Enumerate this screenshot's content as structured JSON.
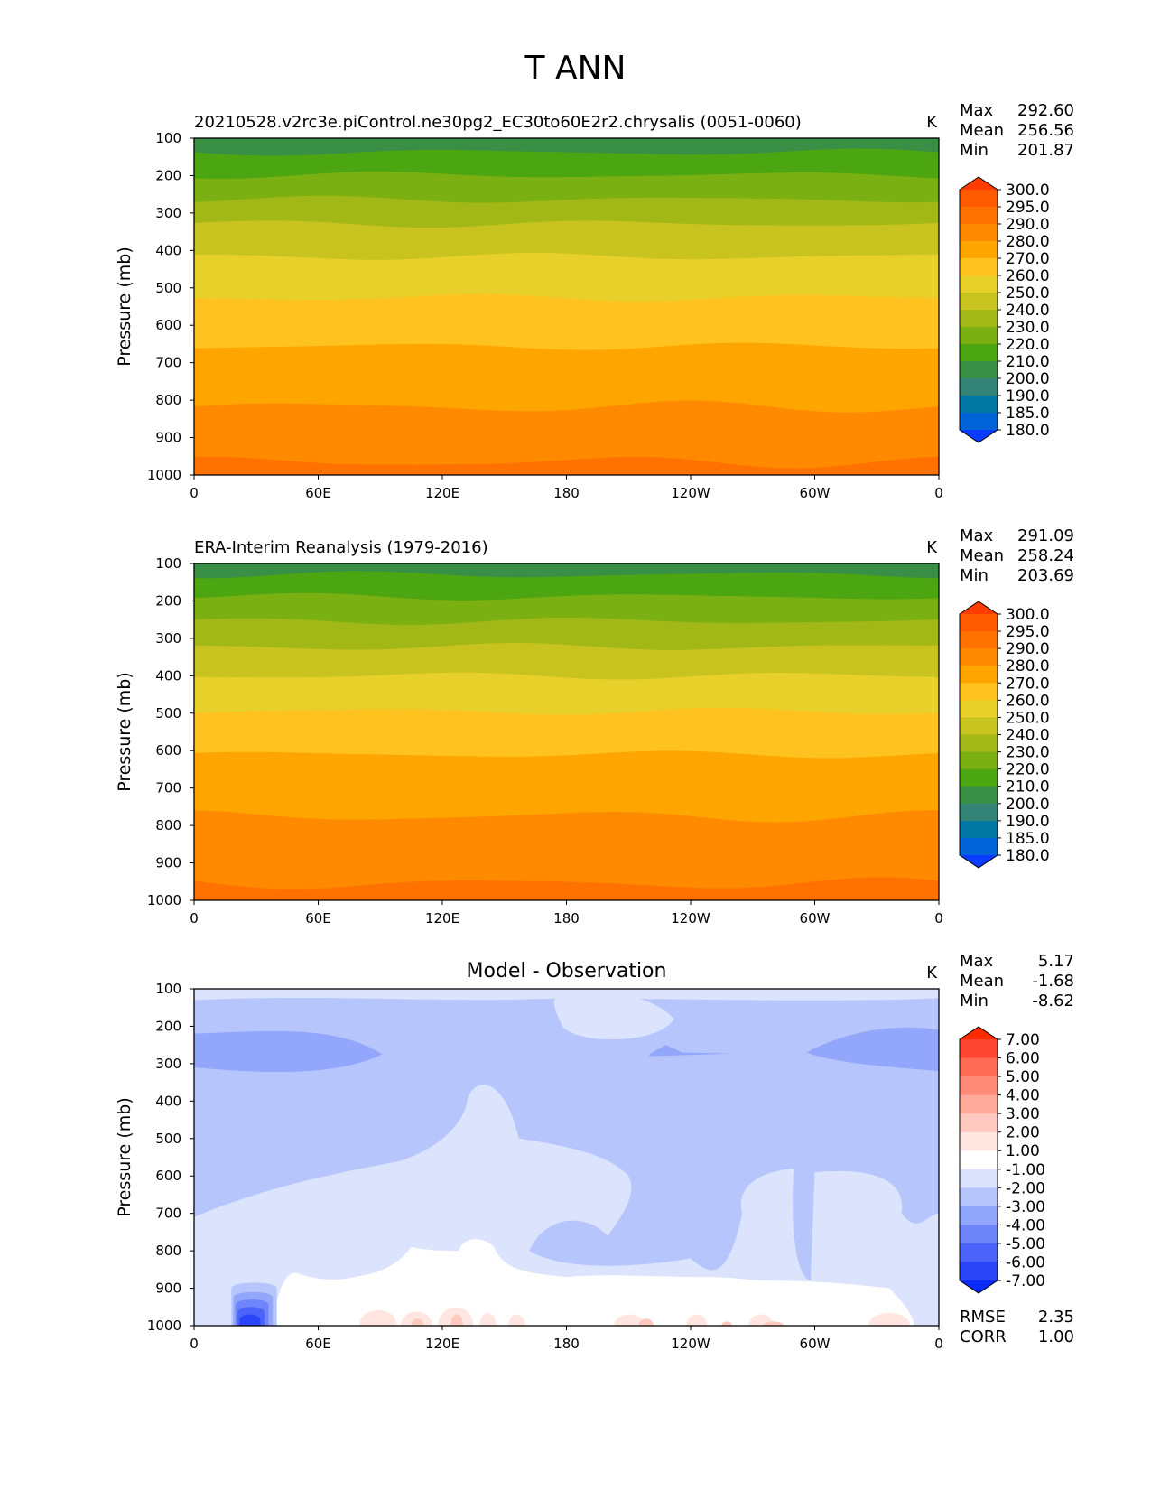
{
  "figure_title": "T ANN",
  "chart_data": [
    {
      "type": "contour",
      "title": "20210528.v2rc3e.piControl.ne30pg2_EC30to60E2r2.chrysalis (0051-0060)",
      "units": "K",
      "xlabel": "",
      "ylabel": "Pressure (mb)",
      "x_ticks": [
        "0",
        "60E",
        "120E",
        "180",
        "120W",
        "60W",
        "0"
      ],
      "y_ticks": [
        "100",
        "200",
        "300",
        "400",
        "500",
        "600",
        "700",
        "800",
        "900",
        "1000"
      ],
      "ylim": [
        1000,
        100
      ],
      "stats": [
        {
          "label": "Max",
          "value": "292.60"
        },
        {
          "label": "Mean",
          "value": "256.56"
        },
        {
          "label": "Min",
          "value": "201.87"
        }
      ],
      "colorbar": {
        "levels": [
          "300.0",
          "295.0",
          "290.0",
          "280.0",
          "270.0",
          "260.0",
          "250.0",
          "240.0",
          "230.0",
          "220.0",
          "210.0",
          "200.0",
          "190.0",
          "185.0",
          "180.0"
        ],
        "colors": [
          "#ff3d00",
          "#ff5a00",
          "#ff7200",
          "#ff8a00",
          "#ffa500",
          "#ffc21f",
          "#e8d02a",
          "#c8c31e",
          "#a2b817",
          "#7bb012",
          "#4ba611",
          "#3a8f46",
          "#338476",
          "#0078a4",
          "#0064d8",
          "#0a3cff"
        ]
      },
      "bands": [
        {
          "p": 100,
          "t": 205
        },
        {
          "p": 150,
          "t": 215
        },
        {
          "p": 215,
          "t": 225
        },
        {
          "p": 280,
          "t": 235
        },
        {
          "p": 345,
          "t": 245
        },
        {
          "p": 440,
          "t": 255
        },
        {
          "p": 555,
          "t": 265
        },
        {
          "p": 690,
          "t": 275
        },
        {
          "p": 860,
          "t": 285
        },
        {
          "p": 1000,
          "t": 292
        }
      ]
    },
    {
      "type": "contour",
      "title": "ERA-Interim Reanalysis (1979-2016)",
      "units": "K",
      "xlabel": "",
      "ylabel": "Pressure (mb)",
      "x_ticks": [
        "0",
        "60E",
        "120E",
        "180",
        "120W",
        "60W",
        "0"
      ],
      "y_ticks": [
        "100",
        "200",
        "300",
        "400",
        "500",
        "600",
        "700",
        "800",
        "900",
        "1000"
      ],
      "ylim": [
        1000,
        100
      ],
      "stats": [
        {
          "label": "Max",
          "value": "291.09"
        },
        {
          "label": "Mean",
          "value": "258.24"
        },
        {
          "label": "Min",
          "value": "203.69"
        }
      ],
      "colorbar": {
        "levels": [
          "300.0",
          "295.0",
          "290.0",
          "280.0",
          "270.0",
          "260.0",
          "250.0",
          "240.0",
          "230.0",
          "220.0",
          "210.0",
          "200.0",
          "190.0",
          "185.0",
          "180.0"
        ],
        "colors": [
          "#ff3d00",
          "#ff5a00",
          "#ff7200",
          "#ff8a00",
          "#ffa500",
          "#ffc21f",
          "#e8d02a",
          "#c8c31e",
          "#a2b817",
          "#7bb012",
          "#4ba611",
          "#3a8f46",
          "#338476",
          "#0078a4",
          "#0064d8",
          "#0a3cff"
        ]
      },
      "bands": [
        {
          "p": 100,
          "t": 205
        },
        {
          "p": 140,
          "t": 215
        },
        {
          "p": 205,
          "t": 225
        },
        {
          "p": 270,
          "t": 235
        },
        {
          "p": 340,
          "t": 245
        },
        {
          "p": 420,
          "t": 255
        },
        {
          "p": 520,
          "t": 265
        },
        {
          "p": 640,
          "t": 275
        },
        {
          "p": 820,
          "t": 285
        },
        {
          "p": 1000,
          "t": 291
        }
      ]
    },
    {
      "type": "contour",
      "title": "Model - Observation",
      "units": "K",
      "xlabel": "",
      "ylabel": "Pressure (mb)",
      "x_ticks": [
        "0",
        "60E",
        "120E",
        "180",
        "120W",
        "60W",
        "0"
      ],
      "y_ticks": [
        "100",
        "200",
        "300",
        "400",
        "500",
        "600",
        "700",
        "800",
        "900",
        "1000"
      ],
      "ylim": [
        1000,
        100
      ],
      "stats": [
        {
          "label": "Max",
          "value": "5.17"
        },
        {
          "label": "Mean",
          "value": "-1.68"
        },
        {
          "label": "Min",
          "value": "-8.62"
        }
      ],
      "extra_stats": [
        {
          "label": "RMSE",
          "value": "2.35"
        },
        {
          "label": "CORR",
          "value": "1.00"
        }
      ],
      "colorbar": {
        "levels": [
          "7.00",
          "6.00",
          "5.00",
          "4.00",
          "3.00",
          "2.00",
          "1.00",
          "-1.00",
          "-2.00",
          "-3.00",
          "-4.00",
          "-5.00",
          "-6.00",
          "-7.00"
        ],
        "colors": [
          "#ff2a00",
          "#ff4633",
          "#ff6b55",
          "#ff8a78",
          "#ffaa9a",
          "#ffc9bf",
          "#ffe6e1",
          "#ffffff",
          "#dbe3fd",
          "#b6c6fd",
          "#92a6fb",
          "#6f86fa",
          "#4b63f9",
          "#2a45f8",
          "#0a2cf7"
        ]
      }
    }
  ]
}
